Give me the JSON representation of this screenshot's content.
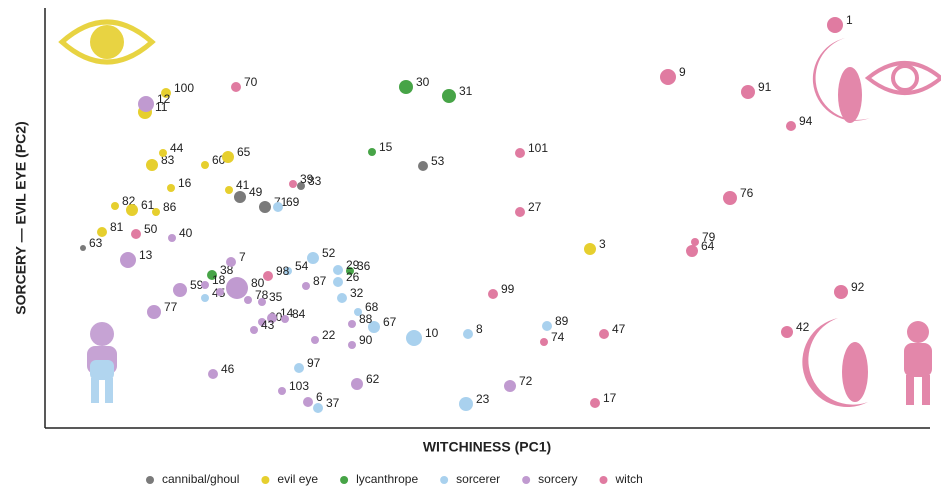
{
  "chart_data": {
    "type": "scatter",
    "xlabel": "WITCHINESS (PC1)",
    "ylabel": "SORCERY — EVIL EYE (PC2)",
    "xlim": [
      0,
      885
    ],
    "ylim": [
      0,
      418
    ],
    "legend": "bottom",
    "series": [
      {
        "name": "cannibal/ghoul",
        "color": "#7a7a7a",
        "labels": [
          "53",
          "63",
          "49",
          "71",
          "33"
        ],
        "x": [
          378,
          38,
          195,
          220,
          256
        ],
        "y": [
          262,
          180,
          231,
          221,
          242
        ],
        "sizes": [
          5,
          3,
          6,
          6,
          4
        ]
      },
      {
        "name": "evil eye",
        "color": "#e6cf2e",
        "labels": [
          "100",
          "11",
          "83",
          "44",
          "60",
          "65",
          "16",
          "41",
          "82",
          "61",
          "86",
          "81",
          "3"
        ],
        "x": [
          121,
          100,
          107,
          118,
          160,
          183,
          126,
          184,
          70,
          87,
          111,
          57,
          545
        ],
        "y": [
          335,
          316,
          263,
          275,
          263,
          271,
          240,
          238,
          222,
          218,
          216,
          196,
          179
        ],
        "sizes": [
          5,
          7,
          6,
          4,
          4,
          6,
          4,
          4,
          4,
          6,
          4,
          5,
          6
        ]
      },
      {
        "name": "lycanthrope",
        "color": "#47a447",
        "labels": [
          "30",
          "31",
          "15",
          "36",
          "38"
        ],
        "x": [
          361,
          404,
          327,
          305,
          167
        ],
        "y": [
          341,
          332,
          276,
          157,
          153
        ],
        "sizes": [
          7,
          7,
          4,
          4,
          5
        ]
      },
      {
        "name": "sorcerer",
        "color": "#a9d1ee",
        "labels": [
          "69",
          "54",
          "52",
          "29",
          "26",
          "32",
          "68",
          "67",
          "10",
          "8",
          "89",
          "97",
          "45",
          "37",
          "23"
        ],
        "x": [
          233,
          243,
          268,
          293,
          293,
          297,
          313,
          329,
          369,
          423,
          502,
          254,
          160,
          273,
          421
        ],
        "y": [
          221,
          157,
          170,
          158,
          146,
          130,
          116,
          101,
          90,
          94,
          102,
          60,
          130,
          20,
          24
        ],
        "sizes": [
          5,
          4,
          6,
          5,
          5,
          5,
          4,
          6,
          8,
          5,
          5,
          5,
          4,
          5,
          7
        ]
      },
      {
        "name": "sorcery",
        "color": "#c09ad0",
        "labels": [
          "12",
          "13",
          "7",
          "40",
          "59",
          "18",
          "2",
          "80",
          "77",
          "78",
          "35",
          "20",
          "14",
          "84",
          "87",
          "88",
          "90",
          "43",
          "22",
          "46",
          "103",
          "6",
          "62",
          "72"
        ],
        "x": [
          101,
          83,
          186,
          127,
          135,
          160,
          175,
          192,
          109,
          203,
          217,
          217,
          227,
          240,
          261,
          307,
          307,
          209,
          270,
          168,
          237,
          263,
          312,
          465
        ],
        "y": [
          324,
          168,
          166,
          190,
          138,
          143,
          136,
          140,
          116,
          128,
          126,
          106,
          110,
          109,
          142,
          104,
          83,
          98,
          88,
          54,
          37,
          26,
          44,
          42
        ],
        "sizes": [
          8,
          8,
          5,
          4,
          7,
          4,
          4,
          11,
          7,
          4,
          4,
          4,
          5,
          4,
          4,
          4,
          4,
          4,
          4,
          5,
          4,
          5,
          6,
          6
        ]
      },
      {
        "name": "witch",
        "color": "#e07ba1",
        "labels": [
          "1",
          "70",
          "9",
          "91",
          "94",
          "101",
          "27",
          "76",
          "79",
          "64",
          "98",
          "99",
          "92",
          "42",
          "47",
          "74",
          "17",
          "50",
          "39"
        ],
        "x": [
          790,
          191,
          623,
          703,
          746,
          475,
          475,
          685,
          650,
          647,
          223,
          448,
          796,
          742,
          559,
          499,
          550,
          91,
          248
        ],
        "y": [
          403,
          341,
          351,
          336,
          302,
          275,
          216,
          230,
          186,
          177,
          152,
          134,
          136,
          96,
          94,
          86,
          25,
          194,
          244
        ],
        "sizes": [
          8,
          5,
          8,
          7,
          5,
          5,
          5,
          7,
          4,
          6,
          5,
          5,
          7,
          6,
          5,
          4,
          5,
          5,
          4
        ]
      }
    ]
  }
}
